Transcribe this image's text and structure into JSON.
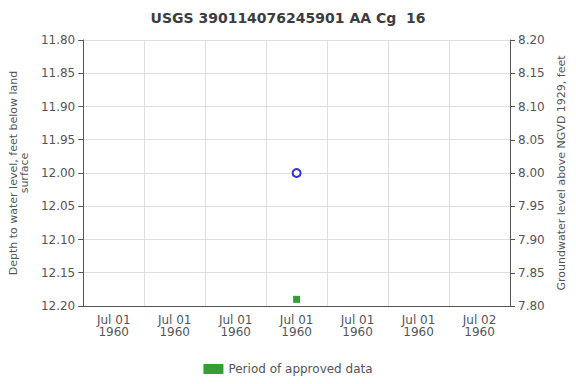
{
  "chart_data": {
    "type": "scatter",
    "title": "USGS 390114076245901 AA Cg  16",
    "y_label": "Depth to water level, feet below land\nsurface",
    "y2_label": "Groundwater level above NGVD 1929, feet",
    "categories": [
      "Jul 01\n1960",
      "Jul 01\n1960",
      "Jul 01\n1960",
      "Jul 01\n1960",
      "Jul 01\n1960",
      "Jul 01\n1960",
      "Jul 02\n1960"
    ],
    "series": [
      {
        "color": "#0000cc",
        "marker": "open_circle",
        "values": [
          null,
          null,
          null,
          12.0,
          null,
          null,
          null
        ]
      },
      {
        "name": "Period of approved data",
        "color": "#008800",
        "marker": "square",
        "values": [
          null,
          null,
          null,
          12.19,
          null,
          null,
          null
        ]
      }
    ],
    "ylim": [
      12.2,
      11.8
    ],
    "yticks": [
      {
        "value": 11.8,
        "label": "11.80"
      },
      11.85,
      {
        "value": 11.9,
        "label": "11.90"
      },
      11.95,
      {
        "value": 12.0,
        "label": "12.00"
      },
      12.05,
      {
        "value": 12.1,
        "label": "12.10"
      },
      12.15,
      {
        "value": 12.2,
        "label": "12.20"
      }
    ],
    "y2lim": [
      7.8,
      8.2
    ],
    "y2ticks": [
      {
        "value": 8.2,
        "label": "8.20"
      },
      8.15,
      {
        "value": 8.1,
        "label": "8.10"
      },
      8.05,
      {
        "value": 8.0,
        "label": "8.00"
      },
      7.95,
      {
        "value": 7.9,
        "label": "7.90"
      },
      7.85,
      {
        "value": 7.8,
        "label": "7.80"
      }
    ],
    "grid": true,
    "legend": "bottom"
  }
}
